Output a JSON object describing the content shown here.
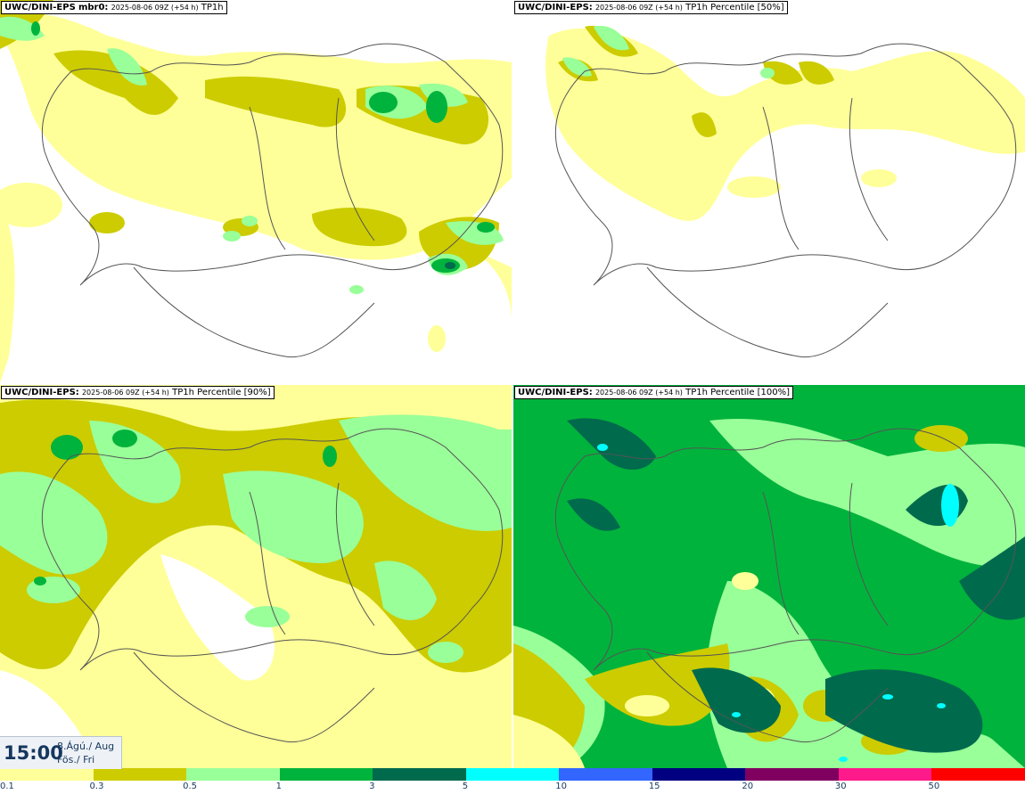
{
  "panels": [
    {
      "id": "p1",
      "source": "UWC/DINI-EPS",
      "meta": "mbr0:",
      "run": "2025-08-06 09Z (+54 h)",
      "field": "TP1h"
    },
    {
      "id": "p2",
      "source": "UWC/DINI-EPS",
      "meta": ":",
      "run": "2025-08-06 09Z (+54 h)",
      "field": "TP1h Percentile [50%]"
    },
    {
      "id": "p3",
      "source": "UWC/DINI-EPS",
      "meta": ":",
      "run": "2025-08-06 09Z (+54 h)",
      "field": "TP1h Percentile [90%]"
    },
    {
      "id": "p4",
      "source": "UWC/DINI-EPS",
      "meta": ":",
      "run": "2025-08-06 09Z (+54 h)",
      "field": "TP1h Percentile [100%]"
    }
  ],
  "valid_time": {
    "hour": "15:00",
    "date": "8.Ágú./ Aug",
    "weekday": "Fös./ Fri"
  },
  "legend": {
    "ticks": [
      "0.1",
      "0.3",
      "0.5",
      "1",
      "3",
      "5",
      "10",
      "15",
      "20",
      "30",
      "50"
    ],
    "colors": [
      "#ffff99",
      "#cccc00",
      "#99ff99",
      "#00b33c",
      "#006a4d",
      "#00ffff",
      "#3366ff",
      "#000080",
      "#800060",
      "#ff1a8c",
      "#ff0000"
    ]
  },
  "colors": {
    "c01": "#ffff99",
    "c03": "#cccc00",
    "c05": "#99ff99",
    "c1": "#00b33c",
    "c3": "#006a4d",
    "c5": "#00ffff",
    "coast": "#555555"
  }
}
